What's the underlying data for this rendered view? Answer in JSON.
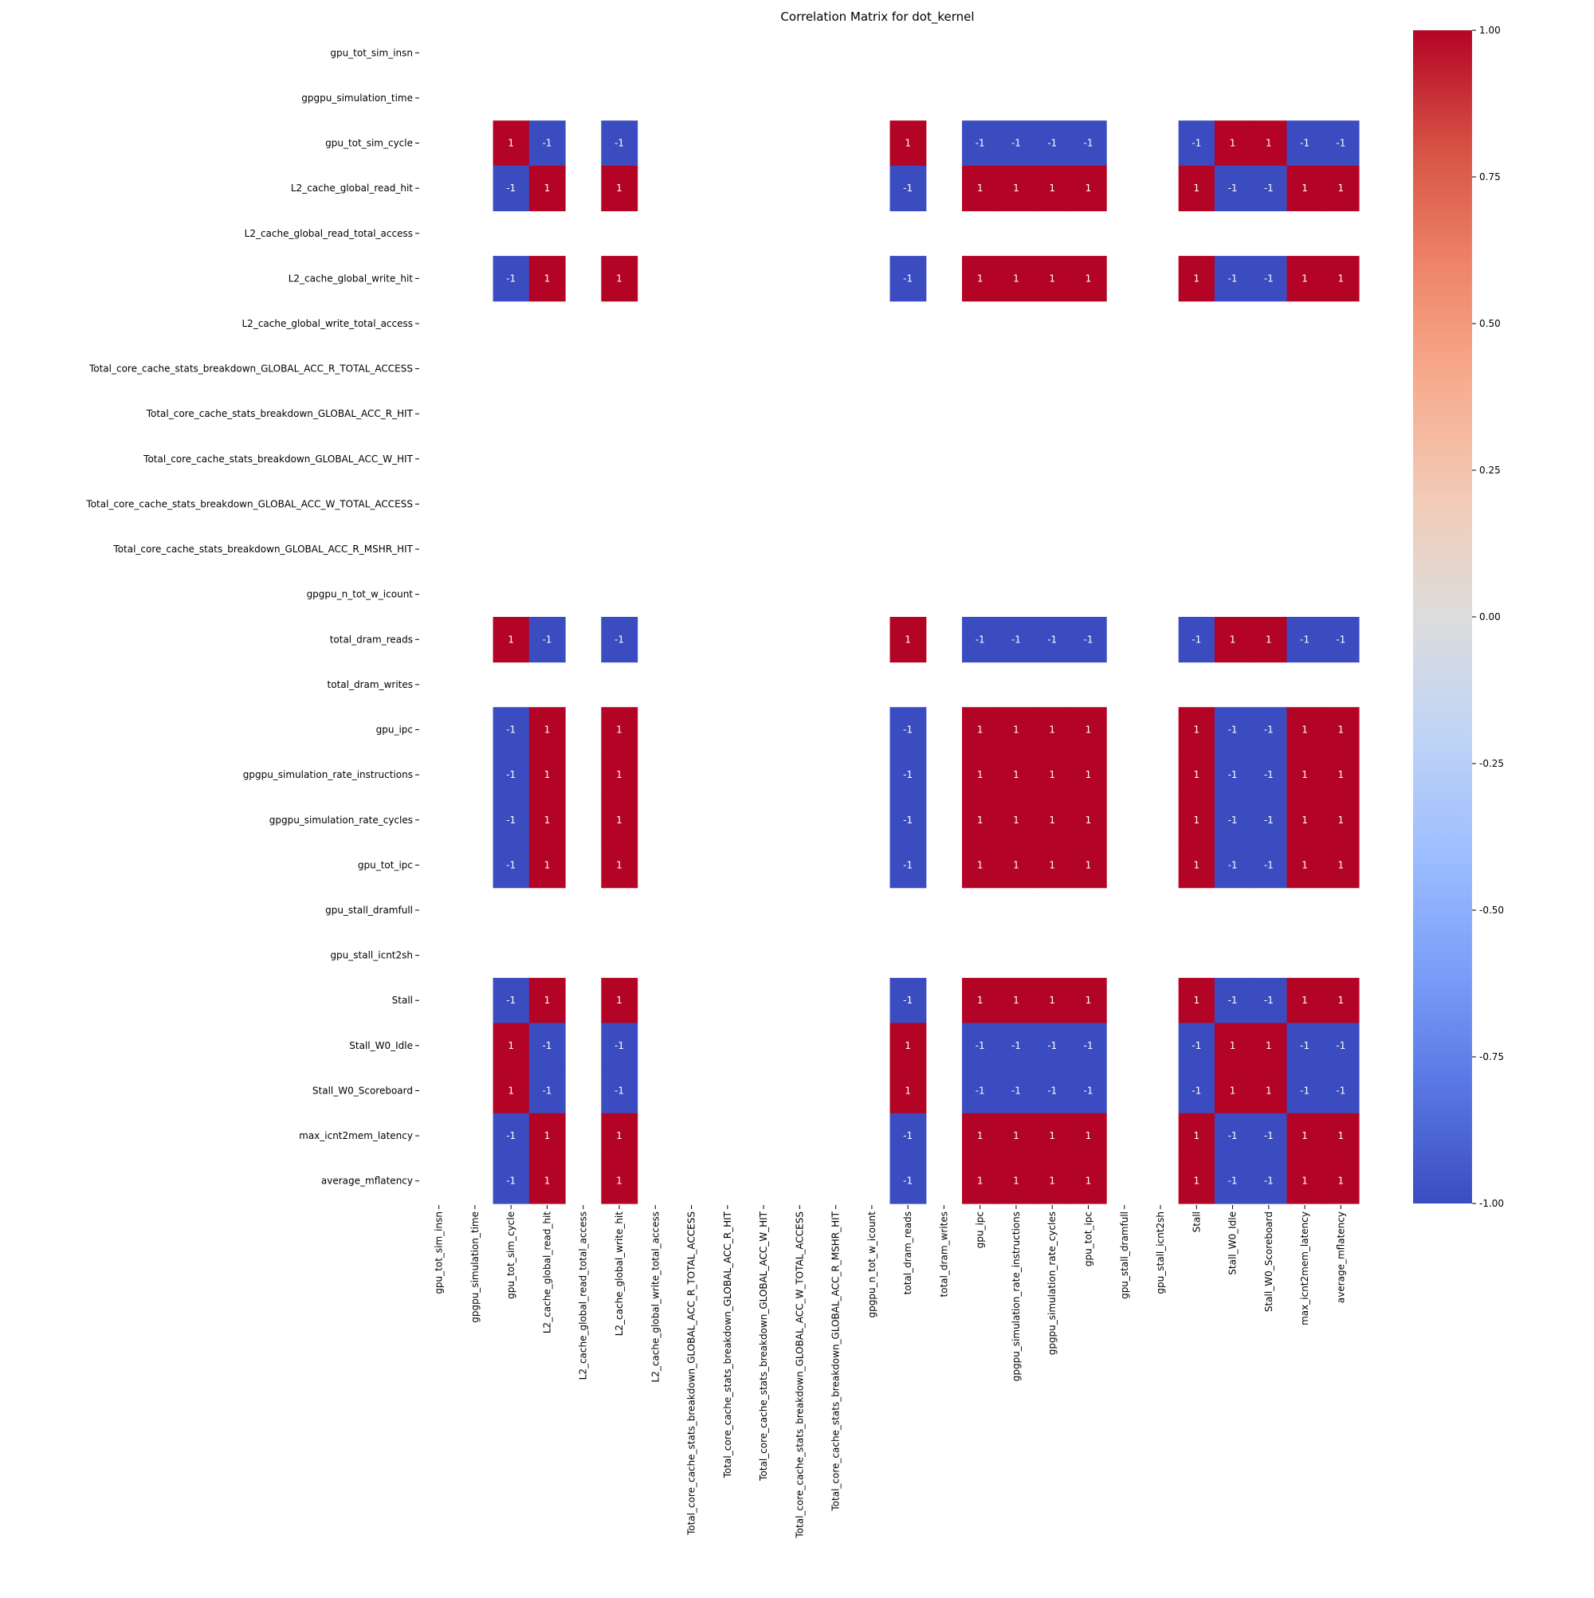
{
  "chart_data": {
    "type": "heatmap",
    "title": "Correlation Matrix for dot_kernel",
    "variables": [
      "gpu_tot_sim_insn",
      "gpgpu_simulation_time",
      "gpu_tot_sim_cycle",
      "L2_cache_global_read_hit",
      "L2_cache_global_read_total_access",
      "L2_cache_global_write_hit",
      "L2_cache_global_write_total_access",
      "Total_core_cache_stats_breakdown_GLOBAL_ACC_R_TOTAL_ACCESS",
      "Total_core_cache_stats_breakdown_GLOBAL_ACC_R_HIT",
      "Total_core_cache_stats_breakdown_GLOBAL_ACC_W_HIT",
      "Total_core_cache_stats_breakdown_GLOBAL_ACC_W_TOTAL_ACCESS",
      "Total_core_cache_stats_breakdown_GLOBAL_ACC_R_MSHR_HIT",
      "gpgpu_n_tot_w_icount",
      "total_dram_reads",
      "total_dram_writes",
      "gpu_ipc",
      "gpgpu_simulation_rate_instructions",
      "gpgpu_simulation_rate_cycles",
      "gpu_tot_ipc",
      "gpu_stall_dramfull",
      "gpu_stall_icnt2sh",
      "Stall",
      "Stall_W0_Idle",
      "Stall_W0_Scoreboard",
      "max_icnt2mem_latency",
      "average_mflatency"
    ],
    "group_a": [
      "gpu_tot_sim_cycle",
      "total_dram_reads",
      "Stall_W0_Idle",
      "Stall_W0_Scoreboard"
    ],
    "group_b": [
      "L2_cache_global_read_hit",
      "L2_cache_global_write_hit",
      "gpu_ipc",
      "gpgpu_simulation_rate_instructions",
      "gpgpu_simulation_rate_cycles",
      "gpu_tot_ipc",
      "Stall",
      "max_icnt2mem_latency",
      "average_mflatency"
    ],
    "rule": "same group = 1, opposite groups = -1, any other variable = NaN (blank)",
    "colorbar": {
      "min": -1.0,
      "max": 1.0,
      "ticks": [
        "1.00",
        "0.75",
        "0.50",
        "0.25",
        "0.00",
        "-0.25",
        "-0.50",
        "-0.75",
        "-1.00"
      ],
      "colormap": "coolwarm",
      "colors": [
        "#3b4cc0",
        "#5977e3",
        "#7b9ff9",
        "#9ebeff",
        "#c0d4f5",
        "#dddcdc",
        "#f2cbb7",
        "#f7ac8e",
        "#ee8468",
        "#d65244",
        "#b40426"
      ]
    },
    "annotation_labels": {
      "positive": "1",
      "negative": "-1"
    },
    "grid": false
  }
}
